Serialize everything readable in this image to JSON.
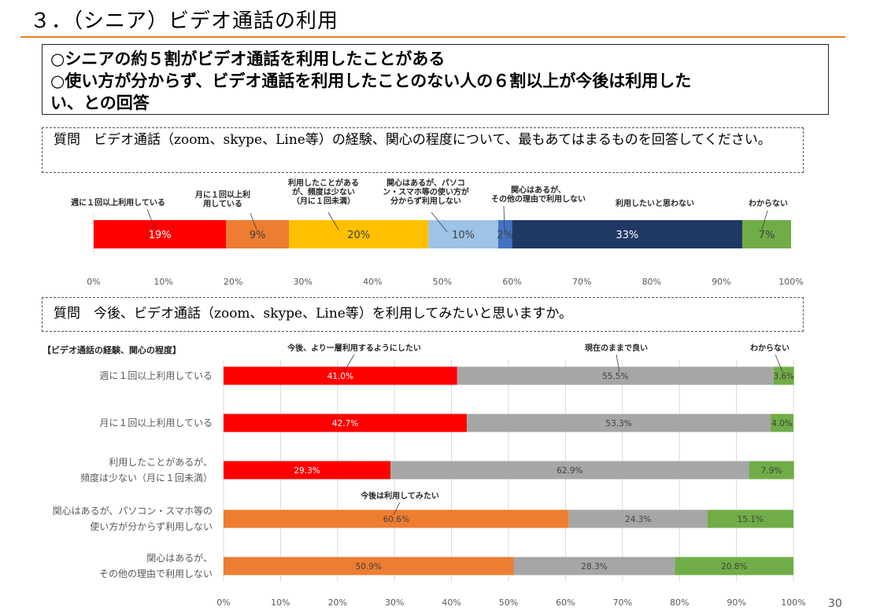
{
  "header": {
    "title": "３．（シニア）ビデオ通話の利用",
    "summary_line1": "○シニアの約５割がビデオ通話を利用したことがある",
    "summary_line2": "○使い方が分からず、ビデオ通話を利用したことのない人の６割以上が今後は利用した",
    "summary_line3": "い、との回答",
    "question1": "質問　ビデオ通話（zoom、skype、Line等）の経験、関心の程度について、最もあてはまるものを回答してください。",
    "question2": "質問　今後、ビデオ通話（zoom、skype、Line等）を利用してみたいと思いますか。",
    "page_number": "30"
  },
  "colors": {
    "red": "#ff0000",
    "orange": "#ed7d31",
    "yellow": "#ffc000",
    "light_blue": "#9dc3e6",
    "blue": "#4472c4",
    "navy": "#203864",
    "green": "#70ad47",
    "gray": "#a6a6a6",
    "accent_rule": "#e67e22"
  },
  "chart_data": [
    {
      "type": "bar",
      "orientation": "horizontal-stacked-100",
      "xlim": [
        0,
        100
      ],
      "x_ticks": [
        "0%",
        "10%",
        "20%",
        "30%",
        "40%",
        "50%",
        "60%",
        "70%",
        "80%",
        "90%",
        "100%"
      ],
      "series": [
        {
          "name": "週に１回以上利用している",
          "value": 19,
          "label": "19%",
          "color": "#ff0000",
          "text_color": "#ffffff"
        },
        {
          "name": "月に１回以上利用している",
          "value": 9,
          "label": "9%",
          "color": "#ed7d31",
          "text_color": "#404040"
        },
        {
          "name": "利用したことがあるが、頻度は少ない（月に１回未満）",
          "value": 20,
          "label": "20%",
          "color": "#ffc000",
          "text_color": "#404040"
        },
        {
          "name": "関心はあるが、パソコン・スマホ等の使い方が分からず利用しない",
          "value": 10,
          "label": "10%",
          "color": "#9dc3e6",
          "text_color": "#404040"
        },
        {
          "name": "関心はあるが、その他の理由で利用しない",
          "value": 2,
          "label": "2%",
          "color": "#4472c4",
          "text_color": "#404040"
        },
        {
          "name": "利用したいと思わない",
          "value": 33,
          "label": "33%",
          "color": "#203864",
          "text_color": "#ffffff"
        },
        {
          "name": "わからない",
          "value": 7,
          "label": "7%",
          "color": "#70ad47",
          "text_color": "#404040"
        }
      ],
      "legend_callouts": [
        {
          "lines": [
            "週に１回以上利用している"
          ]
        },
        {
          "lines": [
            "月に１回以上利",
            "用している"
          ]
        },
        {
          "lines": [
            "利用したことがある",
            "が、頻度は少ない",
            "（月に１回未満）"
          ]
        },
        {
          "lines": [
            "関心はあるが、パソコ",
            "ン・スマホ等の使い方が",
            "分からず利用しない"
          ]
        },
        {
          "lines": [
            "関心はあるが、",
            "その他の理由で利用しない"
          ]
        },
        {
          "lines": [
            "利用したいと思わない"
          ]
        },
        {
          "lines": [
            "わからない"
          ]
        }
      ]
    },
    {
      "type": "bar",
      "orientation": "horizontal-stacked-100",
      "category_header": "【ビデオ通話の経験、関心の程度】",
      "xlim": [
        0,
        100
      ],
      "x_ticks": [
        "0%",
        "10%",
        "20%",
        "30%",
        "40%",
        "50%",
        "60%",
        "70%",
        "80%",
        "90%",
        "100%"
      ],
      "categories": [
        [
          "週に１回以上利用している"
        ],
        [
          "月に１回以上利用している"
        ],
        [
          "利用したことがあるが、",
          "頻度は少ない（月に１回未満）"
        ],
        [
          "関心はあるが、パソコン・スマホ等の",
          "使い方が分からず利用しない"
        ],
        [
          "関心はあるが、",
          "その他の理由で利用しない"
        ]
      ],
      "series_names": [
        "今後、より一層利用するようにしたい",
        "今後は利用してみたい",
        "現在のままで良い",
        "わからない"
      ],
      "rows": [
        [
          {
            "value": 41.0,
            "label": "41.0%",
            "color": "#ff0000",
            "text_color": "#ffffff"
          },
          {
            "value": 55.5,
            "label": "55.5%",
            "color": "#a6a6a6",
            "text_color": "#404040"
          },
          {
            "value": 3.6,
            "label": "3.6%",
            "color": "#70ad47",
            "text_color": "#404040"
          }
        ],
        [
          {
            "value": 42.7,
            "label": "42.7%",
            "color": "#ff0000",
            "text_color": "#ffffff"
          },
          {
            "value": 53.3,
            "label": "53.3%",
            "color": "#a6a6a6",
            "text_color": "#404040"
          },
          {
            "value": 4.0,
            "label": "4.0%",
            "color": "#70ad47",
            "text_color": "#404040"
          }
        ],
        [
          {
            "value": 29.3,
            "label": "29.3%",
            "color": "#ff0000",
            "text_color": "#ffffff"
          },
          {
            "value": 62.9,
            "label": "62.9%",
            "color": "#a6a6a6",
            "text_color": "#404040"
          },
          {
            "value": 7.9,
            "label": "7.9%",
            "color": "#70ad47",
            "text_color": "#404040"
          }
        ],
        [
          {
            "value": 60.6,
            "label": "60.6%",
            "color": "#ed7d31",
            "text_color": "#404040"
          },
          {
            "value": 24.3,
            "label": "24.3%",
            "color": "#a6a6a6",
            "text_color": "#404040"
          },
          {
            "value": 15.1,
            "label": "15.1%",
            "color": "#70ad47",
            "text_color": "#404040"
          }
        ],
        [
          {
            "value": 50.9,
            "label": "50.9%",
            "color": "#ed7d31",
            "text_color": "#404040"
          },
          {
            "value": 28.3,
            "label": "28.3%",
            "color": "#a6a6a6",
            "text_color": "#404040"
          },
          {
            "value": 20.8,
            "label": "20.8%",
            "color": "#70ad47",
            "text_color": "#404040"
          }
        ]
      ]
    }
  ]
}
